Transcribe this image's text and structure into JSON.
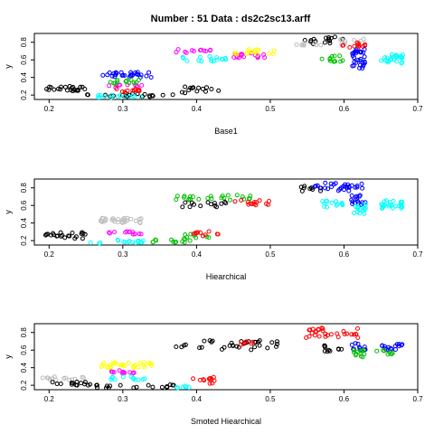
{
  "figure": {
    "title": "Number : 51    Data : ds2c2sc13.arff"
  },
  "chart_data": [
    {
      "type": "scatter",
      "xlabel": "Base1",
      "ylabel": "y",
      "xlim": [
        0.18,
        0.7
      ],
      "ylim": [
        0.15,
        0.9
      ],
      "xticks": [
        "0.2",
        "0.3",
        "0.4",
        "0.5",
        "0.6",
        "0.7"
      ],
      "yticks": [
        "0.2",
        "0.4",
        "0.6",
        "0.8"
      ],
      "clusters": [
        {
          "color": "#000000",
          "x": [
            0.19,
            0.25
          ],
          "y": [
            0.24,
            0.3
          ],
          "n": 24
        },
        {
          "color": "#000000",
          "x": [
            0.25,
            0.38
          ],
          "y": [
            0.18,
            0.22
          ],
          "n": 20
        },
        {
          "color": "#000000",
          "x": [
            0.38,
            0.43
          ],
          "y": [
            0.2,
            0.3
          ],
          "n": 14
        },
        {
          "color": "#000000",
          "x": [
            0.54,
            0.6
          ],
          "y": [
            0.78,
            0.86
          ],
          "n": 16
        },
        {
          "color": "#00ffff",
          "x": [
            0.26,
            0.33
          ],
          "y": [
            0.17,
            0.2
          ],
          "n": 14
        },
        {
          "color": "#0000ff",
          "x": [
            0.27,
            0.34
          ],
          "y": [
            0.4,
            0.46
          ],
          "n": 30
        },
        {
          "color": "#ff00ff",
          "x": [
            0.28,
            0.33
          ],
          "y": [
            0.28,
            0.32
          ],
          "n": 10
        },
        {
          "color": "#00c000",
          "x": [
            0.28,
            0.33
          ],
          "y": [
            0.33,
            0.38
          ],
          "n": 12
        },
        {
          "color": "#ff0000",
          "x": [
            0.29,
            0.33
          ],
          "y": [
            0.23,
            0.27
          ],
          "n": 10
        },
        {
          "color": "#ff00ff",
          "x": [
            0.37,
            0.42
          ],
          "y": [
            0.68,
            0.72
          ],
          "n": 12
        },
        {
          "color": "#00ffff",
          "x": [
            0.38,
            0.44
          ],
          "y": [
            0.58,
            0.64
          ],
          "n": 16
        },
        {
          "color": "#ff00ff",
          "x": [
            0.45,
            0.5
          ],
          "y": [
            0.62,
            0.68
          ],
          "n": 16
        },
        {
          "color": "#ffff00",
          "x": [
            0.45,
            0.51
          ],
          "y": [
            0.66,
            0.72
          ],
          "n": 16
        },
        {
          "color": "#bebebe",
          "x": [
            0.53,
            0.57
          ],
          "y": [
            0.74,
            0.8
          ],
          "n": 8
        },
        {
          "color": "#bebebe",
          "x": [
            0.59,
            0.63
          ],
          "y": [
            0.78,
            0.84
          ],
          "n": 10
        },
        {
          "color": "#ff0000",
          "x": [
            0.59,
            0.63
          ],
          "y": [
            0.74,
            0.8
          ],
          "n": 12
        },
        {
          "color": "#00c000",
          "x": [
            0.57,
            0.6
          ],
          "y": [
            0.58,
            0.66
          ],
          "n": 12
        },
        {
          "color": "#0000ff",
          "x": [
            0.61,
            0.63
          ],
          "y": [
            0.5,
            0.72
          ],
          "n": 30
        },
        {
          "color": "#00ffff",
          "x": [
            0.65,
            0.68
          ],
          "y": [
            0.56,
            0.66
          ],
          "n": 24
        }
      ]
    },
    {
      "type": "scatter",
      "xlabel": "Hiearchical",
      "ylabel": "y",
      "xlim": [
        0.18,
        0.7
      ],
      "ylim": [
        0.15,
        0.9
      ],
      "xticks": [
        "0.2",
        "0.3",
        "0.4",
        "0.5",
        "0.6",
        "0.7"
      ],
      "yticks": [
        "0.2",
        "0.4",
        "0.6",
        "0.8"
      ],
      "clusters": [
        {
          "color": "#000000",
          "x": [
            0.19,
            0.25
          ],
          "y": [
            0.22,
            0.3
          ],
          "n": 22
        },
        {
          "color": "#00ffff",
          "x": [
            0.25,
            0.33
          ],
          "y": [
            0.17,
            0.21
          ],
          "n": 16
        },
        {
          "color": "#bebebe",
          "x": [
            0.27,
            0.33
          ],
          "y": [
            0.4,
            0.46
          ],
          "n": 30
        },
        {
          "color": "#ff00ff",
          "x": [
            0.28,
            0.33
          ],
          "y": [
            0.27,
            0.31
          ],
          "n": 12
        },
        {
          "color": "#00c000",
          "x": [
            0.34,
            0.4
          ],
          "y": [
            0.18,
            0.22
          ],
          "n": 12
        },
        {
          "color": "#00c000",
          "x": [
            0.38,
            0.42
          ],
          "y": [
            0.22,
            0.28
          ],
          "n": 8
        },
        {
          "color": "#ff0000",
          "x": [
            0.39,
            0.43
          ],
          "y": [
            0.25,
            0.31
          ],
          "n": 10
        },
        {
          "color": "#00c000",
          "x": [
            0.37,
            0.48
          ],
          "y": [
            0.66,
            0.72
          ],
          "n": 24
        },
        {
          "color": "#000000",
          "x": [
            0.38,
            0.44
          ],
          "y": [
            0.58,
            0.64
          ],
          "n": 14
        },
        {
          "color": "#ff0000",
          "x": [
            0.45,
            0.5
          ],
          "y": [
            0.6,
            0.66
          ],
          "n": 14
        },
        {
          "color": "#000000",
          "x": [
            0.54,
            0.57
          ],
          "y": [
            0.76,
            0.82
          ],
          "n": 10
        },
        {
          "color": "#0000ff",
          "x": [
            0.56,
            0.63
          ],
          "y": [
            0.76,
            0.86
          ],
          "n": 30
        },
        {
          "color": "#00ffff",
          "x": [
            0.57,
            0.6
          ],
          "y": [
            0.58,
            0.66
          ],
          "n": 14
        },
        {
          "color": "#0000ff",
          "x": [
            0.61,
            0.63
          ],
          "y": [
            0.6,
            0.72
          ],
          "n": 16
        },
        {
          "color": "#00ffff",
          "x": [
            0.61,
            0.63
          ],
          "y": [
            0.5,
            0.62
          ],
          "n": 16
        },
        {
          "color": "#00ffff",
          "x": [
            0.65,
            0.68
          ],
          "y": [
            0.56,
            0.66
          ],
          "n": 24
        }
      ]
    },
    {
      "type": "scatter",
      "xlabel": "Smoted Hiearchical",
      "ylabel": "y",
      "xlim": [
        0.18,
        0.7
      ],
      "ylim": [
        0.15,
        0.9
      ],
      "xticks": [
        "0.2",
        "0.3",
        "0.4",
        "0.5",
        "0.6",
        "0.7"
      ],
      "yticks": [
        "0.2",
        "0.4",
        "0.6",
        "0.8"
      ],
      "clusters": [
        {
          "color": "#bebebe",
          "x": [
            0.19,
            0.25
          ],
          "y": [
            0.26,
            0.3
          ],
          "n": 14
        },
        {
          "color": "#000000",
          "x": [
            0.2,
            0.26
          ],
          "y": [
            0.2,
            0.24
          ],
          "n": 14
        },
        {
          "color": "#000000",
          "x": [
            0.26,
            0.38
          ],
          "y": [
            0.17,
            0.21
          ],
          "n": 20
        },
        {
          "color": "#ffff00",
          "x": [
            0.27,
            0.34
          ],
          "y": [
            0.4,
            0.46
          ],
          "n": 30
        },
        {
          "color": "#ff00ff",
          "x": [
            0.28,
            0.33
          ],
          "y": [
            0.33,
            0.37
          ],
          "n": 12
        },
        {
          "color": "#00ffff",
          "x": [
            0.28,
            0.33
          ],
          "y": [
            0.26,
            0.3
          ],
          "n": 12
        },
        {
          "color": "#00ffff",
          "x": [
            0.36,
            0.39
          ],
          "y": [
            0.17,
            0.2
          ],
          "n": 6
        },
        {
          "color": "#ff0000",
          "x": [
            0.39,
            0.43
          ],
          "y": [
            0.22,
            0.3
          ],
          "n": 12
        },
        {
          "color": "#000000",
          "x": [
            0.37,
            0.51
          ],
          "y": [
            0.6,
            0.72
          ],
          "n": 34
        },
        {
          "color": "#ff0000",
          "x": [
            0.46,
            0.48
          ],
          "y": [
            0.66,
            0.7
          ],
          "n": 6
        },
        {
          "color": "#ff0000",
          "x": [
            0.54,
            0.62
          ],
          "y": [
            0.74,
            0.86
          ],
          "n": 30
        },
        {
          "color": "#000000",
          "x": [
            0.57,
            0.6
          ],
          "y": [
            0.58,
            0.66
          ],
          "n": 10
        },
        {
          "color": "#0000ff",
          "x": [
            0.61,
            0.63
          ],
          "y": [
            0.6,
            0.68
          ],
          "n": 12
        },
        {
          "color": "#00c000",
          "x": [
            0.61,
            0.63
          ],
          "y": [
            0.52,
            0.6
          ],
          "n": 12
        },
        {
          "color": "#0000ff",
          "x": [
            0.65,
            0.68
          ],
          "y": [
            0.6,
            0.67
          ],
          "n": 16
        },
        {
          "color": "#00c000",
          "x": [
            0.64,
            0.67
          ],
          "y": [
            0.55,
            0.6
          ],
          "n": 8
        }
      ]
    }
  ]
}
